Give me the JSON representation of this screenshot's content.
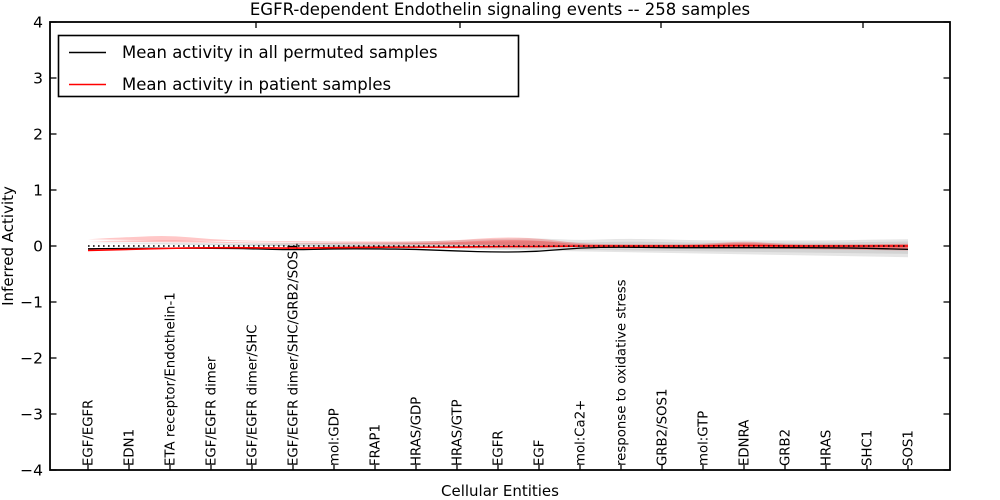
{
  "title": "EGFR-dependent Endothelin signaling events -- 258 samples",
  "axes": {
    "xlabel": "Cellular Entities",
    "ylabel": "Inferred Activity",
    "yticks": [
      4,
      3,
      2,
      1,
      0,
      -1,
      -2,
      -3,
      -4
    ],
    "ylim": [
      -4,
      4
    ]
  },
  "legend": {
    "items": [
      {
        "label": "Mean activity in all permuted samples",
        "color": "#000000"
      },
      {
        "label": "Mean activity in patient samples",
        "color": "#ff0000"
      }
    ]
  },
  "chart_data": {
    "type": "line",
    "title": "EGFR-dependent Endothelin signaling events -- 258 samples",
    "xlabel": "Cellular Entities",
    "ylabel": "Inferred Activity",
    "ylim": [
      -4,
      4
    ],
    "grid": false,
    "legend_position": "upper left",
    "zero_line": 0,
    "categories": [
      "EGF/EGFR",
      "EDN1",
      "ETA receptor/Endothelin-1",
      "EGF/EGFR dimer",
      "EGF/EGFR dimer/SHC",
      "EGF/EGFR dimer/SHC/GRB2/SOS1",
      "mol:GDP",
      "FRAP1",
      "HRAS/GDP",
      "HRAS/GTP",
      "EGFR",
      "EGF",
      "mol:Ca2+",
      "response to oxidative stress",
      "GRB2/SOS1",
      "mol:GTP",
      "EDNRA",
      "GRB2",
      "HRAS",
      "SHC1",
      "SOS1"
    ],
    "series": [
      {
        "name": "Mean activity in all permuted samples",
        "color": "#000000",
        "style": "solid",
        "width": 1.3,
        "values": [
          -0.05,
          -0.04,
          -0.04,
          -0.04,
          -0.05,
          -0.07,
          -0.05,
          -0.05,
          -0.06,
          -0.09,
          -0.11,
          -0.1,
          -0.03,
          -0.02,
          -0.03,
          -0.03,
          -0.03,
          -0.03,
          -0.03,
          -0.04,
          -0.06
        ]
      },
      {
        "name": "Mean activity in patient samples",
        "color": "#ff0000",
        "style": "solid",
        "width": 1.6,
        "values": [
          -0.08,
          -0.06,
          -0.04,
          -0.03,
          -0.03,
          -0.04,
          -0.03,
          -0.02,
          -0.02,
          -0.02,
          -0.01,
          -0.01,
          0,
          0,
          0,
          0,
          0.01,
          0,
          0,
          0,
          0
        ]
      }
    ],
    "bands": [
      {
        "name": "permuted-std-outer",
        "fill": "rgba(0,0,0,0.10)",
        "top": [
          0.06,
          0.06,
          0.06,
          0.05,
          0.05,
          0.06,
          0.06,
          0.06,
          0.08,
          0.1,
          0.13,
          0.14,
          0.1,
          0.13,
          0.12,
          0.1,
          0.1,
          0.1,
          0.1,
          0.11,
          0.12
        ],
        "bottom": [
          -0.18,
          -0.17,
          -0.16,
          -0.15,
          -0.16,
          -0.19,
          -0.17,
          -0.16,
          -0.19,
          -0.23,
          -0.28,
          -0.3,
          -0.19,
          -0.23,
          -0.21,
          -0.17,
          -0.16,
          -0.15,
          -0.16,
          -0.18,
          -0.2
        ]
      },
      {
        "name": "permuted-std-inner",
        "fill": "rgba(0,0,0,0.08)",
        "top": [
          0.04,
          0.04,
          0.04,
          0.03,
          0.03,
          0.04,
          0.04,
          0.04,
          0.05,
          0.06,
          0.08,
          0.09,
          0.06,
          0.08,
          0.07,
          0.06,
          0.06,
          0.06,
          0.06,
          0.07,
          0.08
        ],
        "bottom": [
          -0.13,
          -0.12,
          -0.11,
          -0.11,
          -0.12,
          -0.14,
          -0.12,
          -0.11,
          -0.13,
          -0.16,
          -0.2,
          -0.21,
          -0.13,
          -0.16,
          -0.15,
          -0.12,
          -0.11,
          -0.11,
          -0.11,
          -0.13,
          -0.14
        ]
      },
      {
        "name": "patient-std-outer",
        "fill": "rgba(255,0,0,0.22)",
        "top": [
          0.12,
          0.16,
          0.19,
          0.12,
          0.09,
          0.09,
          0.08,
          0.08,
          0.08,
          0.1,
          0.16,
          0.14,
          0.04,
          0.03,
          0.03,
          0.03,
          0.09,
          0.03,
          0.03,
          0.03,
          0.04
        ],
        "bottom": [
          -0.33,
          -0.4,
          -0.32,
          -0.22,
          -0.2,
          -0.2,
          -0.17,
          -0.16,
          -0.16,
          -0.18,
          -0.22,
          -0.19,
          -0.07,
          -0.06,
          -0.06,
          -0.06,
          -0.11,
          -0.06,
          -0.06,
          -0.06,
          -0.08
        ]
      },
      {
        "name": "patient-std-inner",
        "fill": "rgba(255,0,0,0.25)",
        "top": [
          0.08,
          0.1,
          0.11,
          0.08,
          0.06,
          0.06,
          0.05,
          0.05,
          0.05,
          0.07,
          0.11,
          0.1,
          0.02,
          0.02,
          0.02,
          0.02,
          0.06,
          0.02,
          0.02,
          0.02,
          0.03
        ],
        "bottom": [
          -0.24,
          -0.28,
          -0.22,
          -0.16,
          -0.14,
          -0.14,
          -0.12,
          -0.11,
          -0.11,
          -0.13,
          -0.16,
          -0.14,
          -0.05,
          -0.04,
          -0.04,
          -0.04,
          -0.08,
          -0.04,
          -0.04,
          -0.04,
          -0.06
        ]
      }
    ]
  }
}
